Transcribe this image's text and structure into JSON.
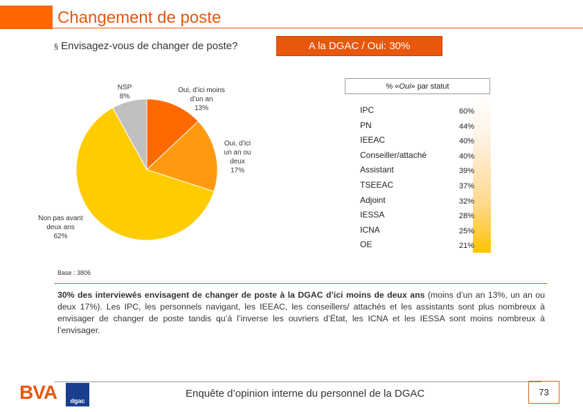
{
  "page": {
    "title": "Changement de poste",
    "question": "Envisagez-vous de changer de poste?",
    "question_bullet": "§",
    "badge": "A la DGAC / Oui: 30%",
    "base": "Base : 3806",
    "summary_bold": "30% des interviewés envisagent de changer de poste à la DGAC d’ici moins de deux ans",
    "summary_rest": " (moins d’un an 13%, un an ou deux 17%). Les IPC, les personnels navigant, les IEEAC, les conseillers/ attachés et les assistants sont plus nombreux à envisager de changer de poste tandis qu’à l’inverse les ouvriers d’État, les ICNA et les IESSA sont moins nombreux à l’envisager.",
    "footer": "Enquête d’opinion interne du personnel de la DGAC",
    "page_number": "73",
    "logo_bva": "BVA",
    "logo_dgac": "dgac"
  },
  "colors": {
    "accent": "#e8570c",
    "slice_moins_un_an": "#ff6a00",
    "slice_un_an_deux": "#ff9a10",
    "slice_non": "#ffcc00",
    "slice_nsp": "#c0c0c0"
  },
  "chart_data": [
    {
      "type": "pie",
      "title": "Envisagez-vous de changer de poste?",
      "slices": [
        {
          "line1": "Oui, d’ici moins",
          "line2": "d’un an",
          "line3": "",
          "line4": "",
          "value": 13,
          "pct": "13%"
        },
        {
          "line1": "Oui, d’ici",
          "line2": "un an ou",
          "line3": "deux",
          "line4": "",
          "value": 17,
          "pct": "17%"
        },
        {
          "line1": "Non pas avant",
          "line2": "deux ans",
          "line3": "",
          "line4": "",
          "value": 62,
          "pct": "62%"
        },
        {
          "line1": "NSP",
          "line2": "",
          "line3": "",
          "line4": "",
          "value": 8,
          "pct": "8%"
        }
      ]
    },
    {
      "type": "table",
      "title_prefix": "% « ",
      "title_italic": "Oui",
      "title_suffix": "» par statut",
      "rows": [
        {
          "label": "IPC",
          "value": 60,
          "display": "60%"
        },
        {
          "label": "PN",
          "value": 44,
          "display": "44%"
        },
        {
          "label": "IEEAC",
          "value": 40,
          "display": "40%"
        },
        {
          "label": "Conseiller/attaché",
          "value": 40,
          "display": "40%"
        },
        {
          "label": "Assistant",
          "value": 39,
          "display": "39%"
        },
        {
          "label": "TSEEAC",
          "value": 37,
          "display": "37%"
        },
        {
          "label": "Adjoint",
          "value": 32,
          "display": "32%"
        },
        {
          "label": "IESSA",
          "value": 28,
          "display": "28%"
        },
        {
          "label": "ICNA",
          "value": 25,
          "display": "25%"
        },
        {
          "label": "OE",
          "value": 21,
          "display": "21%"
        }
      ]
    }
  ]
}
